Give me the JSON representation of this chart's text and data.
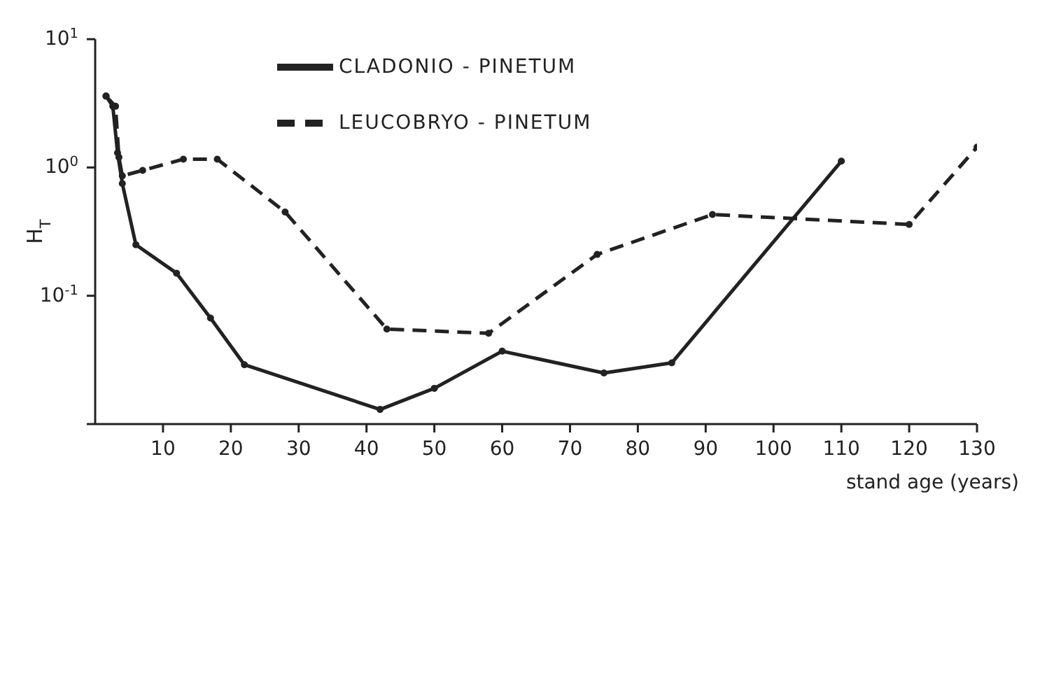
{
  "chart_data": {
    "type": "line",
    "xlabel": "stand age (years)",
    "ylabel": "H$_{T}$",
    "log": "y",
    "xlim": [
      0,
      130
    ],
    "xticks": [
      10,
      20,
      30,
      40,
      50,
      60,
      70,
      80,
      90,
      100,
      110,
      120,
      130
    ],
    "ylim": [
      0.01,
      10
    ],
    "yticks": [
      {
        "value": 0.01,
        "label": null
      },
      {
        "value": 0.1,
        "label": "10$^{-1}$"
      },
      {
        "value": 1,
        "label": "10$^{0}$"
      },
      {
        "value": 10,
        "label": "10$^{1}$"
      }
    ],
    "legend": "top",
    "grid": false,
    "marker": "circle",
    "series": [
      {
        "name": "CLADONIO - PINETUM",
        "color": "#222222",
        "line_style": "solid",
        "x": [
          1.6,
          2.6,
          3.3,
          4,
          6,
          12,
          17,
          22,
          42,
          50,
          60,
          75,
          85,
          110
        ],
        "values": [
          3.6,
          3.0,
          1.3,
          0.75,
          0.25,
          0.15,
          0.067,
          0.029,
          0.013,
          0.019,
          0.037,
          0.025,
          0.03,
          1.12
        ]
      },
      {
        "name": "LEUCOBRYO - PINETUM",
        "color": "#222222",
        "line_style": "dashed",
        "x": [
          1.6,
          3,
          3.5,
          4,
          7,
          13,
          18,
          28,
          43,
          58,
          74,
          91,
          120,
          130
        ],
        "values": [
          3.6,
          3.0,
          1.2,
          0.86,
          0.95,
          1.16,
          1.16,
          0.45,
          0.055,
          0.051,
          0.21,
          0.43,
          0.36,
          1.44
        ]
      }
    ]
  }
}
